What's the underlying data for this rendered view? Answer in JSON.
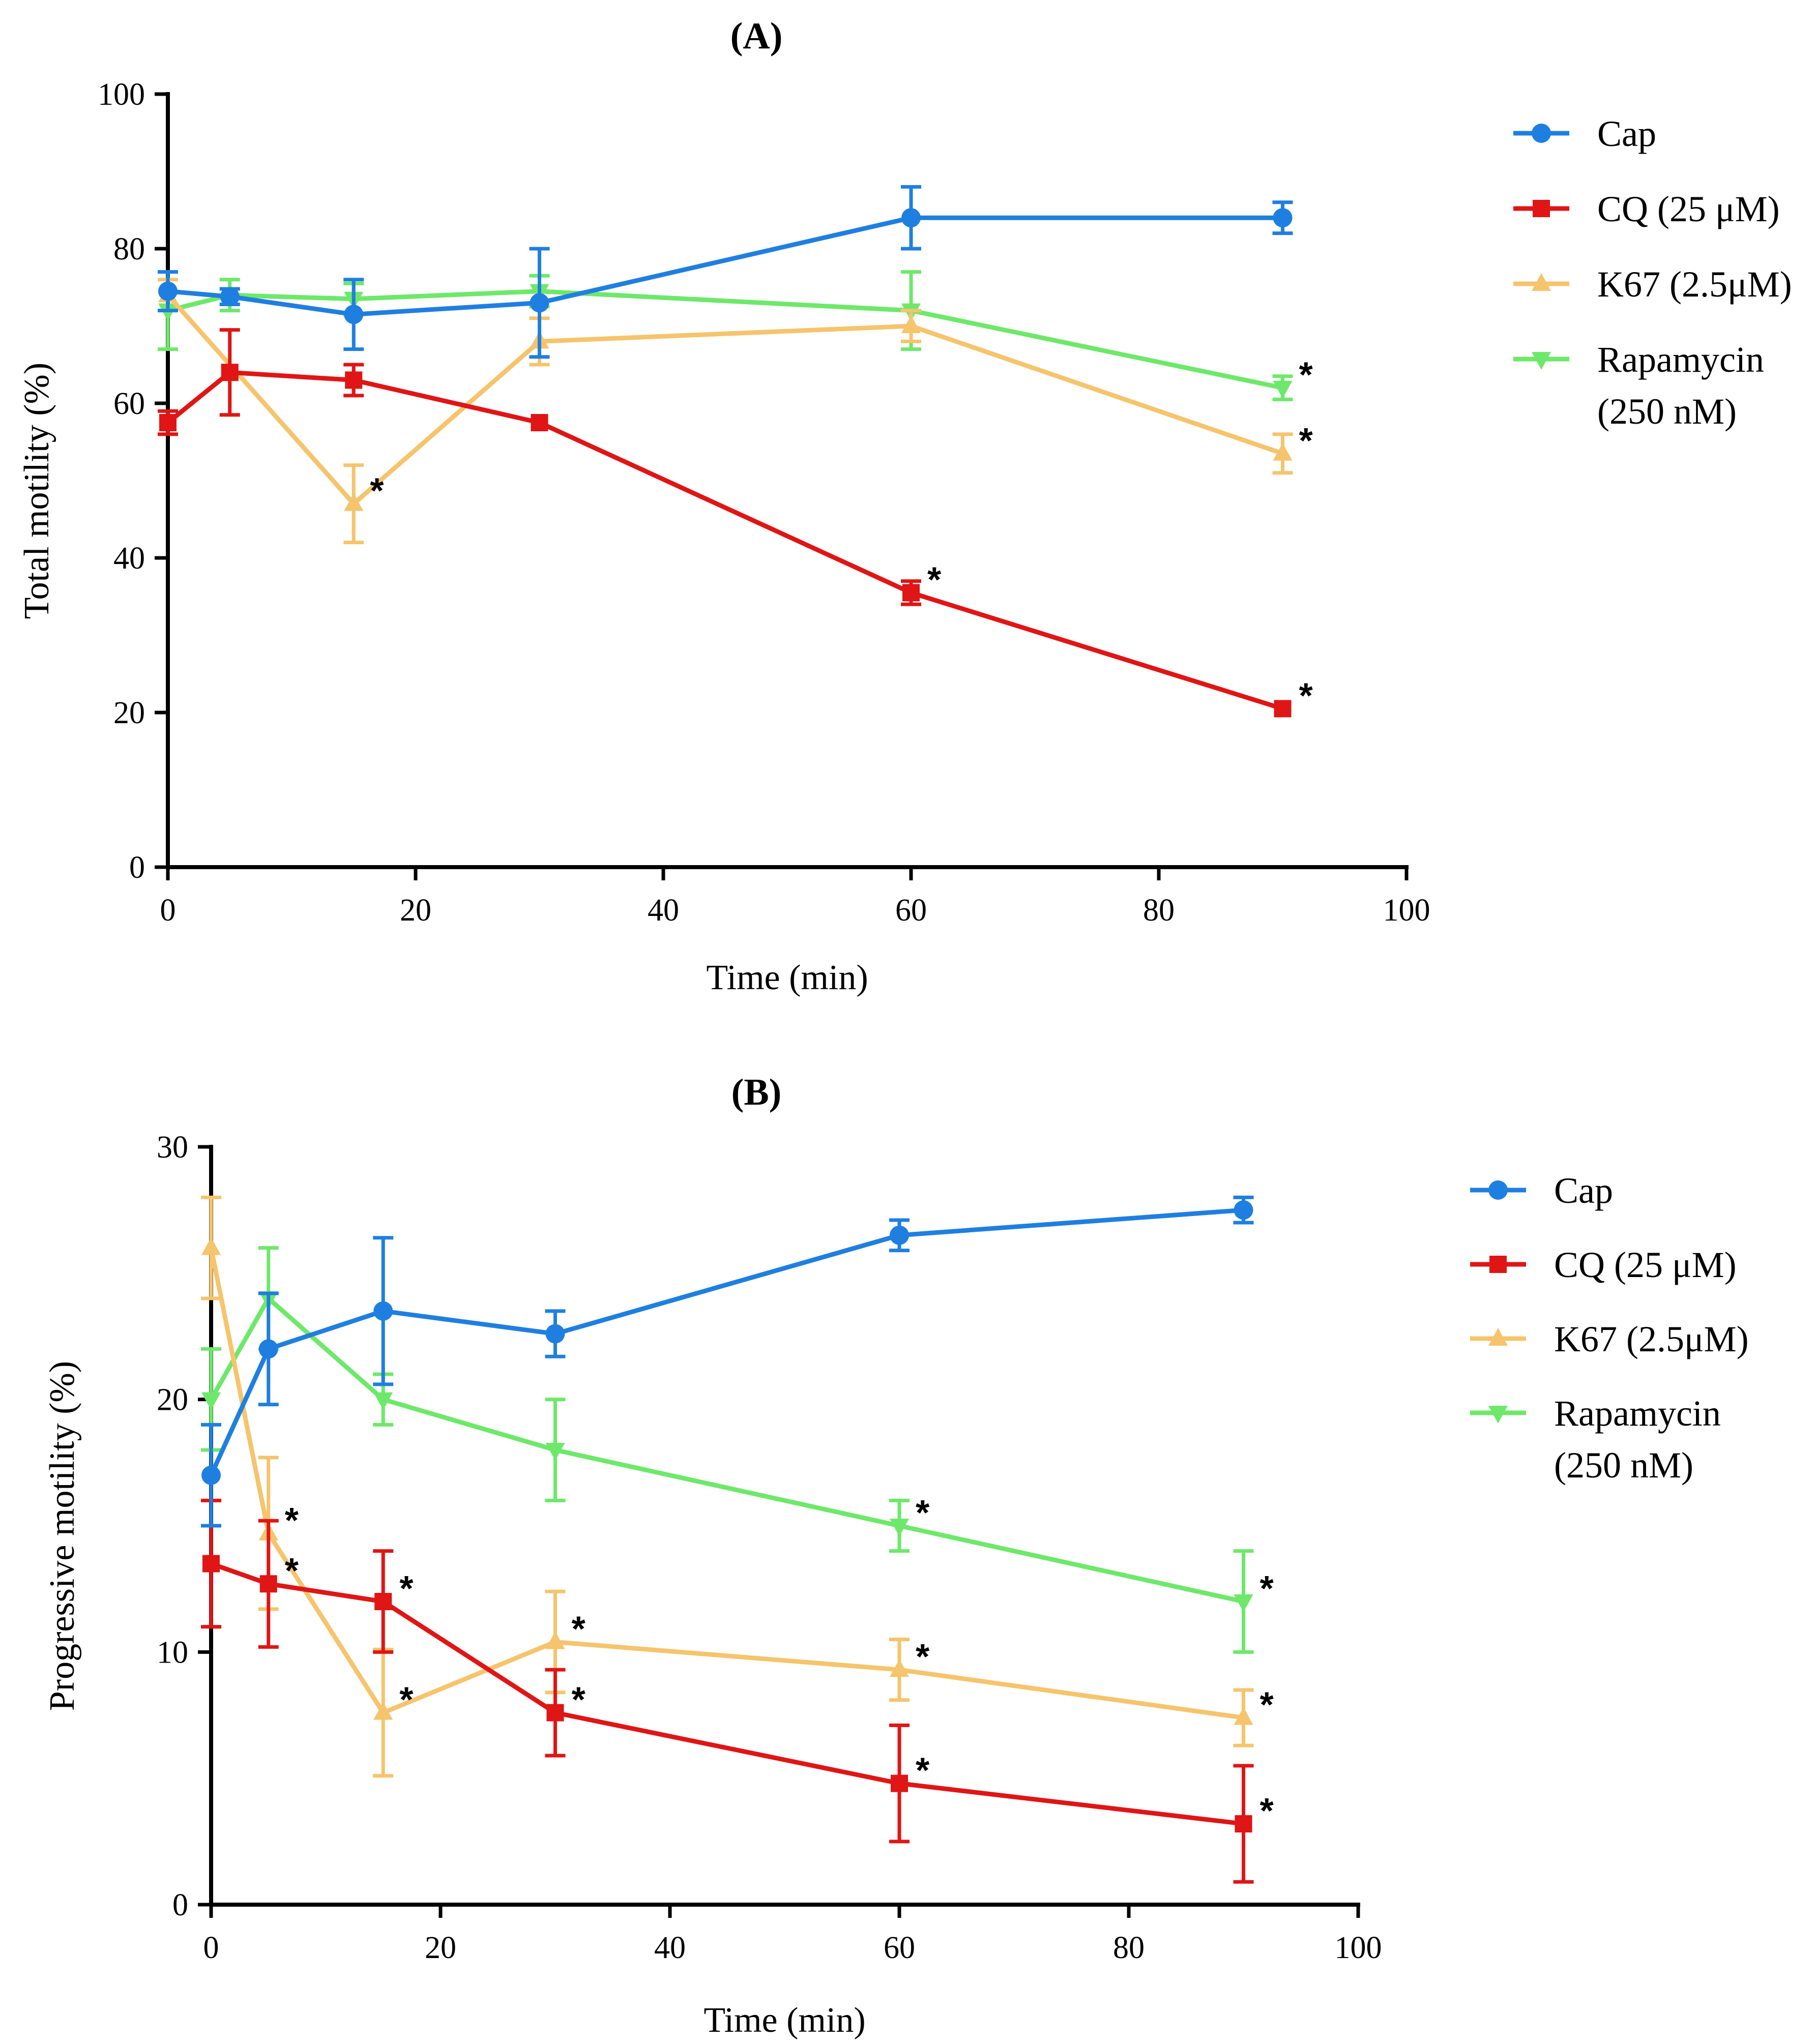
{
  "colors": {
    "Cap": "#1f7fe0",
    "CQ": "#e01515",
    "K67": "#f5c46c",
    "Rapamycin": "#6ee86a"
  },
  "chart_data": [
    {
      "type": "line",
      "title": "(A)",
      "xlabel": "Time (min)",
      "ylabel": "Total motility (%)",
      "xlim": [
        0,
        100
      ],
      "ylim": [
        0,
        100
      ],
      "xticks": [
        "0",
        "20",
        "40",
        "60",
        "80",
        "100"
      ],
      "yticks": [
        "0",
        "20",
        "40",
        "60",
        "80",
        "100"
      ],
      "legend_position": "right",
      "series": [
        {
          "key": "Cap",
          "name": "Cap",
          "marker": "circle",
          "x": [
            0,
            5,
            15,
            30,
            60,
            90
          ],
          "y": [
            74.5,
            73.8,
            71.5,
            73,
            84,
            84
          ],
          "err": [
            2.5,
            1,
            4.5,
            7,
            4,
            2
          ],
          "sig": [
            false,
            false,
            false,
            false,
            false,
            false
          ]
        },
        {
          "key": "CQ",
          "name": "CQ (25 μM)",
          "marker": "square",
          "x": [
            0,
            5,
            15,
            30,
            60,
            90
          ],
          "y": [
            57.5,
            64,
            63,
            57.5,
            35.5,
            20.5
          ],
          "err": [
            1.5,
            5.5,
            2,
            0,
            1.5,
            0
          ],
          "sig": [
            false,
            false,
            false,
            false,
            true,
            true
          ]
        },
        {
          "key": "K67",
          "name": "K67 (2.5μM)",
          "marker": "triangle-up",
          "x": [
            0,
            15,
            30,
            60,
            90
          ],
          "y": [
            74,
            47,
            68,
            70,
            53.5
          ],
          "err": [
            2,
            5,
            3,
            2,
            2.5
          ],
          "sig": [
            false,
            true,
            false,
            false,
            true
          ]
        },
        {
          "key": "Rapamycin",
          "name": "Rapamycin (250 nM)",
          "name_lines": [
            "Rapamycin",
            "(250 nM)"
          ],
          "marker": "triangle-down",
          "x": [
            0,
            5,
            15,
            30,
            60,
            90
          ],
          "y": [
            72,
            74,
            73.5,
            74.5,
            72,
            62
          ],
          "err": [
            5,
            2,
            2,
            2,
            5,
            1.5
          ],
          "sig": [
            false,
            false,
            false,
            false,
            false,
            true
          ]
        }
      ]
    },
    {
      "type": "line",
      "title": "(B)",
      "xlabel": "Time (min)",
      "ylabel": "Progressive motility (%)",
      "xlim": [
        0,
        100
      ],
      "ylim": [
        0,
        30
      ],
      "xticks": [
        "0",
        "20",
        "40",
        "60",
        "80",
        "100"
      ],
      "yticks": [
        "0",
        "10",
        "20",
        "30"
      ],
      "legend_position": "right",
      "series": [
        {
          "key": "Cap",
          "name": "Cap",
          "marker": "circle",
          "x": [
            0,
            5,
            15,
            30,
            60,
            90
          ],
          "y": [
            17,
            22,
            23.5,
            22.6,
            26.5,
            27.5
          ],
          "err": [
            2,
            2.2,
            2.9,
            0.9,
            0.6,
            0.5
          ],
          "sig": [
            false,
            false,
            false,
            false,
            false,
            false
          ]
        },
        {
          "key": "CQ",
          "name": "CQ (25 μM)",
          "marker": "square",
          "x": [
            0,
            5,
            15,
            30,
            60,
            90
          ],
          "y": [
            13.5,
            12.7,
            12,
            7.6,
            4.8,
            3.2
          ],
          "err": [
            2.5,
            2.5,
            2,
            1.7,
            2.3,
            2.3
          ],
          "sig": [
            false,
            true,
            true,
            true,
            true,
            true
          ]
        },
        {
          "key": "K67",
          "name": "K67 (2.5μM)",
          "marker": "triangle-up",
          "x": [
            0,
            5,
            15,
            30,
            60,
            90
          ],
          "y": [
            26,
            14.7,
            7.6,
            10.4,
            9.3,
            7.4
          ],
          "err": [
            2,
            3,
            2.5,
            2,
            1.2,
            1.1
          ],
          "sig": [
            false,
            true,
            true,
            true,
            true,
            true
          ]
        },
        {
          "key": "Rapamycin",
          "name": "Rapamycin (250 nM)",
          "name_lines": [
            "Rapamycin",
            "(250 nM)"
          ],
          "marker": "triangle-down",
          "x": [
            0,
            5,
            15,
            30,
            60,
            90
          ],
          "y": [
            20,
            24,
            20,
            18,
            15,
            12
          ],
          "err": [
            2,
            2,
            1,
            2,
            1,
            2
          ],
          "sig": [
            false,
            false,
            false,
            false,
            true,
            true
          ]
        }
      ]
    }
  ],
  "significance_symbol": "*"
}
